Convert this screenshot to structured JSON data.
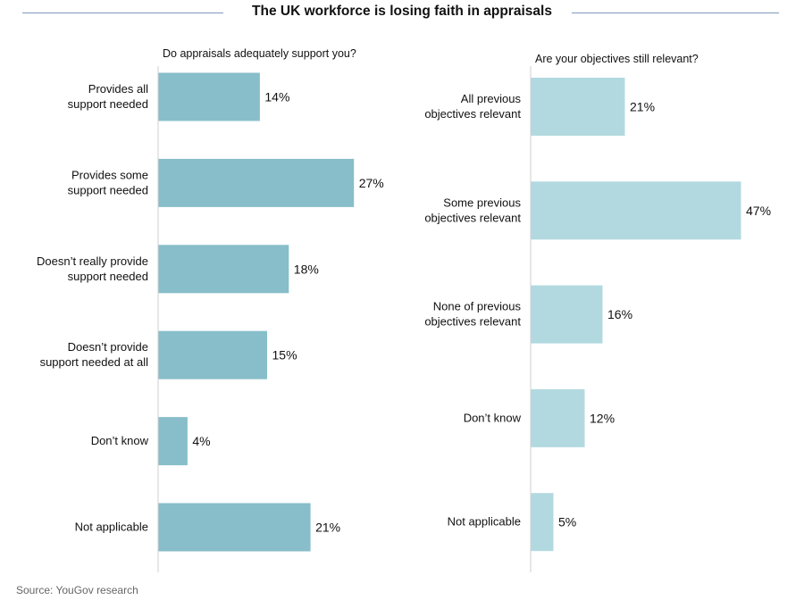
{
  "title": "The UK workforce is losing faith in appraisals",
  "source": "Source: YouGov research",
  "colors": {
    "left_bar": "#87bec9",
    "right_bar": "#b2d9e0",
    "rule": "#7f9bbf"
  },
  "chart_data": [
    {
      "type": "bar",
      "orientation": "horizontal",
      "title": "Do appraisals adequately support you?",
      "categories": [
        [
          "Provides all",
          "support needed"
        ],
        [
          "Provides some",
          "support needed"
        ],
        [
          "Doesn’t really provide",
          "support needed"
        ],
        [
          "Doesn’t provide",
          "support needed at all"
        ],
        [
          "Don’t know"
        ],
        [
          "Not applicable"
        ]
      ],
      "values": [
        14,
        27,
        18,
        15,
        4,
        21
      ],
      "value_labels": [
        "14%",
        "27%",
        "18%",
        "15%",
        "4%",
        "21%"
      ],
      "unit": "%"
    },
    {
      "type": "bar",
      "orientation": "horizontal",
      "title": "Are your objectives still relevant?",
      "categories": [
        [
          "All previous",
          "objectives relevant"
        ],
        [
          "Some previous",
          "objectives relevant"
        ],
        [
          "None of previous",
          "objectives relevant"
        ],
        [
          "Don’t know"
        ],
        [
          "Not applicable"
        ]
      ],
      "values": [
        21,
        47,
        16,
        12,
        5
      ],
      "value_labels": [
        "21%",
        "47%",
        "16%",
        "12%",
        "5%"
      ],
      "unit": "%"
    }
  ]
}
